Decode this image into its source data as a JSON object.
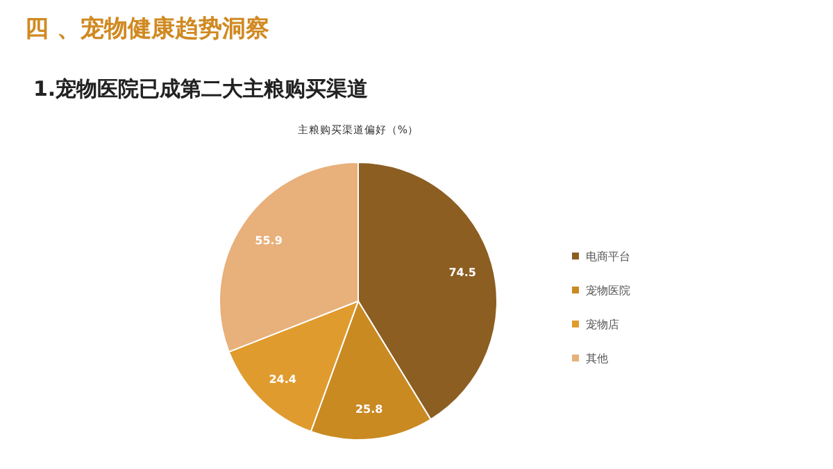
{
  "chart_data": {
    "type": "pie",
    "title": "四 、宠物健康趋势洞察",
    "subtitle": "1.宠物医院已成第二大主粮购买渠道",
    "annotations": [
      "主粮购买渠道偏好（%）"
    ],
    "categories": [
      "电商平台",
      "宠物医院",
      "宠物店",
      "其他"
    ],
    "values": [
      74.5,
      25.8,
      24.4,
      55.9
    ],
    "colors": [
      "#8c5e22",
      "#c98a22",
      "#e09b2e",
      "#e8b07a"
    ],
    "data_labels": true,
    "legend": "right"
  }
}
